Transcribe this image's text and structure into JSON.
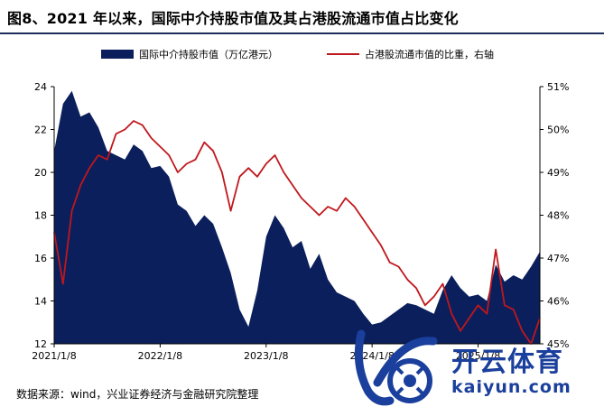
{
  "title": "图8、2021 年以来，国际中介持股市值及其占港股流通市值占比变化",
  "source": "数据来源：wind，兴业证券经济与金融研究院整理",
  "watermark": {
    "brand": "开云体育",
    "url": "kaiyun.com"
  },
  "colors": {
    "area": "#0b1f5c",
    "line": "#c0171c",
    "rule": "#1f2d5a",
    "watermark": "#1a3f9c"
  },
  "chart_data": {
    "type": "area+line",
    "x": [
      "2021/1/8",
      "2021/2/8",
      "2021/3/8",
      "2021/4/8",
      "2021/5/8",
      "2021/6/8",
      "2021/7/8",
      "2021/8/8",
      "2021/9/8",
      "2021/10/8",
      "2021/11/8",
      "2021/12/8",
      "2022/1/8",
      "2022/2/8",
      "2022/3/8",
      "2022/4/8",
      "2022/5/8",
      "2022/6/8",
      "2022/7/8",
      "2022/8/8",
      "2022/9/8",
      "2022/10/8",
      "2022/11/8",
      "2022/12/8",
      "2023/1/8",
      "2023/2/8",
      "2023/3/8",
      "2023/4/8",
      "2023/5/8",
      "2023/6/8",
      "2023/7/8",
      "2023/8/8",
      "2023/9/8",
      "2023/10/8",
      "2023/11/8",
      "2023/12/8",
      "2024/1/8",
      "2024/2/8",
      "2024/3/8",
      "2024/4/8",
      "2024/5/8",
      "2024/6/8",
      "2024/7/8",
      "2024/8/8",
      "2024/9/8",
      "2024/10/8",
      "2024/11/8",
      "2024/12/8",
      "2025/1/8",
      "2025/2/8",
      "2025/3/8",
      "2025/4/8",
      "2025/5/8",
      "2025/6/8",
      "2025/7/8",
      "2025/8/8"
    ],
    "x_tick_labels": [
      "2021/1/8",
      "2022/1/8",
      "2023/1/8",
      "2024/1/8",
      "2025/1/8"
    ],
    "series": [
      {
        "name": "国际中介持股市值（万亿港元）",
        "type": "area",
        "axis": "left",
        "values": [
          21.0,
          23.2,
          23.8,
          22.6,
          22.8,
          22.1,
          21.0,
          20.8,
          20.6,
          21.3,
          21.0,
          20.2,
          20.3,
          19.8,
          18.5,
          18.2,
          17.5,
          18.0,
          17.6,
          16.5,
          15.3,
          13.6,
          12.8,
          14.5,
          17.0,
          18.0,
          17.4,
          16.5,
          16.8,
          15.5,
          16.2,
          15.0,
          14.4,
          14.2,
          14.0,
          13.4,
          12.9,
          13.0,
          13.3,
          13.6,
          13.9,
          13.8,
          13.6,
          13.4,
          14.5,
          15.2,
          14.6,
          14.2,
          14.3,
          14.0,
          15.7,
          14.9,
          15.2,
          15.0,
          15.6,
          16.3
        ]
      },
      {
        "name": "占港股流通市值的比重，右轴",
        "type": "line",
        "axis": "right",
        "values": [
          47.6,
          46.4,
          48.1,
          48.7,
          49.1,
          49.4,
          49.3,
          49.9,
          50.0,
          50.2,
          50.1,
          49.8,
          49.6,
          49.4,
          49.0,
          49.2,
          49.3,
          49.7,
          49.5,
          49.0,
          48.1,
          48.9,
          49.1,
          48.9,
          49.2,
          49.4,
          49.0,
          48.7,
          48.4,
          48.2,
          48.0,
          48.2,
          48.1,
          48.4,
          48.2,
          47.9,
          47.6,
          47.3,
          46.9,
          46.8,
          46.5,
          46.3,
          45.9,
          46.1,
          46.4,
          45.7,
          45.3,
          45.6,
          45.9,
          45.7,
          47.2,
          45.9,
          45.8,
          45.3,
          45.0,
          45.6
        ]
      }
    ],
    "left_axis": {
      "ylim": [
        12,
        24
      ],
      "ticks": [
        "12",
        "14",
        "16",
        "18",
        "20",
        "22",
        "24"
      ]
    },
    "right_axis": {
      "ylim": [
        45,
        51
      ],
      "ticks": [
        "45%",
        "46%",
        "47%",
        "48%",
        "49%",
        "50%",
        "51%"
      ]
    },
    "legend_position": "top"
  }
}
